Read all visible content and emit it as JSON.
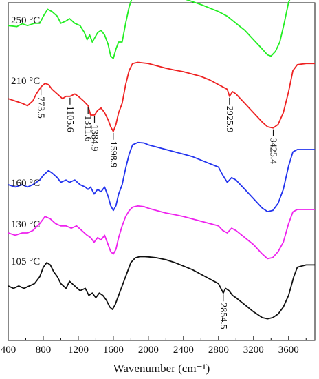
{
  "chart_data": {
    "type": "line",
    "xlabel": "Wavenumber (cm⁻¹)",
    "ylabel": "",
    "xlim": [
      400,
      3900
    ],
    "x_ticks": [
      "400",
      "800",
      "1200",
      "1600",
      "2000",
      "2400",
      "2800",
      "3200",
      "3600"
    ],
    "grid": false,
    "legend": "none",
    "series": [
      {
        "name": "250 °C",
        "color": "#22ee22",
        "x": [
          400,
          500,
          560,
          620,
          700,
          760,
          800,
          850,
          900,
          960,
          1000,
          1060,
          1100,
          1160,
          1220,
          1270,
          1300,
          1330,
          1360,
          1390,
          1420,
          1460,
          1500,
          1540,
          1570,
          1600,
          1630,
          1660,
          1700,
          1740,
          1780,
          1820,
          1880,
          1950,
          2000,
          2100,
          2200,
          2300,
          2400,
          2500,
          2600,
          2700,
          2800,
          2900,
          3000,
          3100,
          3200,
          3300,
          3360,
          3400,
          3450,
          3500,
          3550,
          3600,
          3650,
          3700,
          3800,
          3900
        ],
        "y": [
          0.02,
          0.016,
          0.028,
          0.02,
          0.03,
          0.03,
          0.06,
          0.09,
          0.08,
          0.06,
          0.03,
          0.04,
          0.05,
          0.03,
          0.02,
          -0.01,
          -0.04,
          -0.02,
          -0.05,
          -0.03,
          -0.01,
          0.0,
          -0.02,
          -0.06,
          -0.11,
          -0.12,
          -0.08,
          -0.05,
          -0.05,
          0.03,
          0.1,
          0.145,
          0.175,
          0.178,
          0.168,
          0.16,
          0.15,
          0.145,
          0.135,
          0.123,
          0.11,
          0.095,
          0.08,
          0.06,
          0.03,
          0.0,
          -0.04,
          -0.08,
          -0.105,
          -0.11,
          -0.09,
          -0.05,
          0.03,
          0.12,
          0.16,
          0.17,
          0.172,
          0.172
        ]
      },
      {
        "name": "210 °C",
        "color": "#ee2222",
        "x": [
          400,
          480,
          560,
          620,
          680,
          720,
          773.5,
          820,
          860,
          900,
          960,
          1020,
          1060,
          1105.6,
          1160,
          1200,
          1260,
          1311.6,
          1340,
          1384.9,
          1420,
          1460,
          1500,
          1540,
          1570,
          1598.9,
          1630,
          1660,
          1700,
          1740,
          1780,
          1820,
          1880,
          1950,
          2000,
          2100,
          2200,
          2300,
          2400,
          2500,
          2600,
          2700,
          2800,
          2900,
          2925.9,
          2960,
          3000,
          3100,
          3200,
          3300,
          3360,
          3425.4,
          3480,
          3540,
          3600,
          3650,
          3700,
          3800,
          3900
        ],
        "y": [
          0.02,
          0.01,
          0.0,
          -0.01,
          0.01,
          0.04,
          0.07,
          0.085,
          0.08,
          0.06,
          0.04,
          0.02,
          0.03,
          0.03,
          0.04,
          0.03,
          0.01,
          -0.01,
          -0.05,
          -0.05,
          -0.03,
          -0.02,
          -0.04,
          -0.07,
          -0.1,
          -0.12,
          -0.09,
          -0.04,
          0.0,
          0.08,
          0.14,
          0.17,
          0.175,
          0.172,
          0.17,
          0.16,
          0.15,
          0.142,
          0.135,
          0.125,
          0.115,
          0.1,
          0.08,
          0.06,
          0.03,
          0.05,
          0.04,
          0.0,
          -0.04,
          -0.08,
          -0.1,
          -0.105,
          -0.09,
          -0.04,
          0.05,
          0.14,
          0.165,
          0.17,
          0.17
        ]
      },
      {
        "name": "160 °C",
        "color": "#2233ee",
        "x": [
          400,
          480,
          560,
          620,
          680,
          760,
          800,
          860,
          900,
          960,
          1000,
          1060,
          1100,
          1160,
          1220,
          1280,
          1310,
          1340,
          1380,
          1420,
          1460,
          1500,
          1540,
          1570,
          1600,
          1630,
          1660,
          1700,
          1740,
          1780,
          1820,
          1880,
          1950,
          2000,
          2100,
          2200,
          2300,
          2400,
          2500,
          2600,
          2700,
          2800,
          2850,
          2900,
          2950,
          3000,
          3100,
          3200,
          3300,
          3360,
          3420,
          3480,
          3540,
          3600,
          3650,
          3700,
          3800,
          3900
        ],
        "y": [
          0.0,
          -0.01,
          0.0,
          -0.01,
          0.0,
          0.02,
          0.04,
          0.06,
          0.05,
          0.03,
          0.01,
          0.02,
          0.01,
          0.02,
          0.0,
          -0.01,
          -0.02,
          -0.01,
          -0.04,
          -0.02,
          -0.03,
          -0.01,
          -0.05,
          -0.09,
          -0.11,
          -0.09,
          -0.04,
          0.0,
          0.07,
          0.13,
          0.17,
          0.18,
          0.178,
          0.17,
          0.16,
          0.15,
          0.14,
          0.13,
          0.12,
          0.105,
          0.09,
          0.075,
          0.04,
          0.01,
          0.03,
          0.02,
          -0.02,
          -0.06,
          -0.1,
          -0.115,
          -0.11,
          -0.08,
          -0.02,
          0.08,
          0.14,
          0.15,
          0.15,
          0.15
        ]
      },
      {
        "name": "130 °C",
        "color": "#ee22ee",
        "x": [
          400,
          480,
          560,
          620,
          680,
          760,
          820,
          880,
          940,
          1000,
          1060,
          1120,
          1180,
          1240,
          1300,
          1340,
          1380,
          1420,
          1460,
          1500,
          1540,
          1570,
          1600,
          1630,
          1660,
          1700,
          1740,
          1780,
          1820,
          1880,
          1950,
          2000,
          2100,
          2200,
          2300,
          2400,
          2500,
          2600,
          2700,
          2800,
          2850,
          2900,
          2950,
          3000,
          3100,
          3200,
          3300,
          3360,
          3420,
          3480,
          3540,
          3600,
          3650,
          3700,
          3800,
          3900
        ],
        "y": [
          0.0,
          -0.01,
          0.0,
          0.0,
          0.01,
          0.04,
          0.07,
          0.06,
          0.04,
          0.03,
          0.03,
          0.02,
          0.03,
          0.01,
          -0.01,
          -0.02,
          -0.04,
          -0.02,
          -0.03,
          -0.01,
          -0.05,
          -0.08,
          -0.09,
          -0.07,
          -0.02,
          0.03,
          0.07,
          0.095,
          0.11,
          0.115,
          0.112,
          0.105,
          0.095,
          0.085,
          0.078,
          0.07,
          0.06,
          0.05,
          0.04,
          0.03,
          0.01,
          0.0,
          0.02,
          0.01,
          -0.02,
          -0.05,
          -0.09,
          -0.11,
          -0.105,
          -0.08,
          -0.04,
          0.04,
          0.09,
          0.1,
          0.1,
          0.1
        ]
      },
      {
        "name": "105 °C",
        "color": "#111111",
        "x": [
          400,
          460,
          520,
          580,
          640,
          700,
          760,
          800,
          840,
          880,
          920,
          960,
          1000,
          1060,
          1100,
          1160,
          1220,
          1280,
          1320,
          1360,
          1400,
          1440,
          1480,
          1520,
          1560,
          1590,
          1620,
          1650,
          1680,
          1720,
          1760,
          1800,
          1850,
          1900,
          1960,
          2000,
          2100,
          2200,
          2300,
          2400,
          2500,
          2600,
          2700,
          2800,
          2854.5,
          2880,
          2920,
          2960,
          3000,
          3100,
          3200,
          3300,
          3360,
          3420,
          3480,
          3540,
          3600,
          3660,
          3700,
          3800,
          3900
        ],
        "y": [
          0.0,
          -0.01,
          0.0,
          -0.01,
          0.0,
          0.01,
          0.04,
          0.08,
          0.1,
          0.09,
          0.06,
          0.04,
          0.01,
          -0.01,
          0.02,
          0.0,
          -0.02,
          -0.01,
          -0.04,
          -0.03,
          -0.05,
          -0.03,
          -0.04,
          -0.06,
          -0.09,
          -0.1,
          -0.08,
          -0.05,
          -0.02,
          0.02,
          0.06,
          0.1,
          0.12,
          0.125,
          0.125,
          0.124,
          0.12,
          0.112,
          0.1,
          0.085,
          0.07,
          0.05,
          0.03,
          0.01,
          -0.03,
          -0.01,
          -0.02,
          -0.04,
          -0.05,
          -0.08,
          -0.11,
          -0.135,
          -0.14,
          -0.135,
          -0.12,
          -0.09,
          -0.04,
          0.04,
          0.08,
          0.09,
          0.09
        ]
      }
    ],
    "series_labels": [
      "250 °C",
      "210 °C",
      "160 °C",
      "130 °C",
      "105 °C"
    ],
    "annotations": [
      {
        "series": 1,
        "x": 773.5,
        "text": "773.5"
      },
      {
        "series": 1,
        "x": 1105.6,
        "text": "1105.6"
      },
      {
        "series": 1,
        "x": 1311.6,
        "text": "1311.6"
      },
      {
        "series": 1,
        "x": 1384.9,
        "text": "1384.9"
      },
      {
        "series": 1,
        "x": 1598.9,
        "text": "1598.9"
      },
      {
        "series": 1,
        "x": 2925.9,
        "text": "2925.9"
      },
      {
        "series": 1,
        "x": 3425.4,
        "text": "3425.4"
      },
      {
        "series": 4,
        "x": 2854.5,
        "text": "2854.5"
      }
    ]
  }
}
